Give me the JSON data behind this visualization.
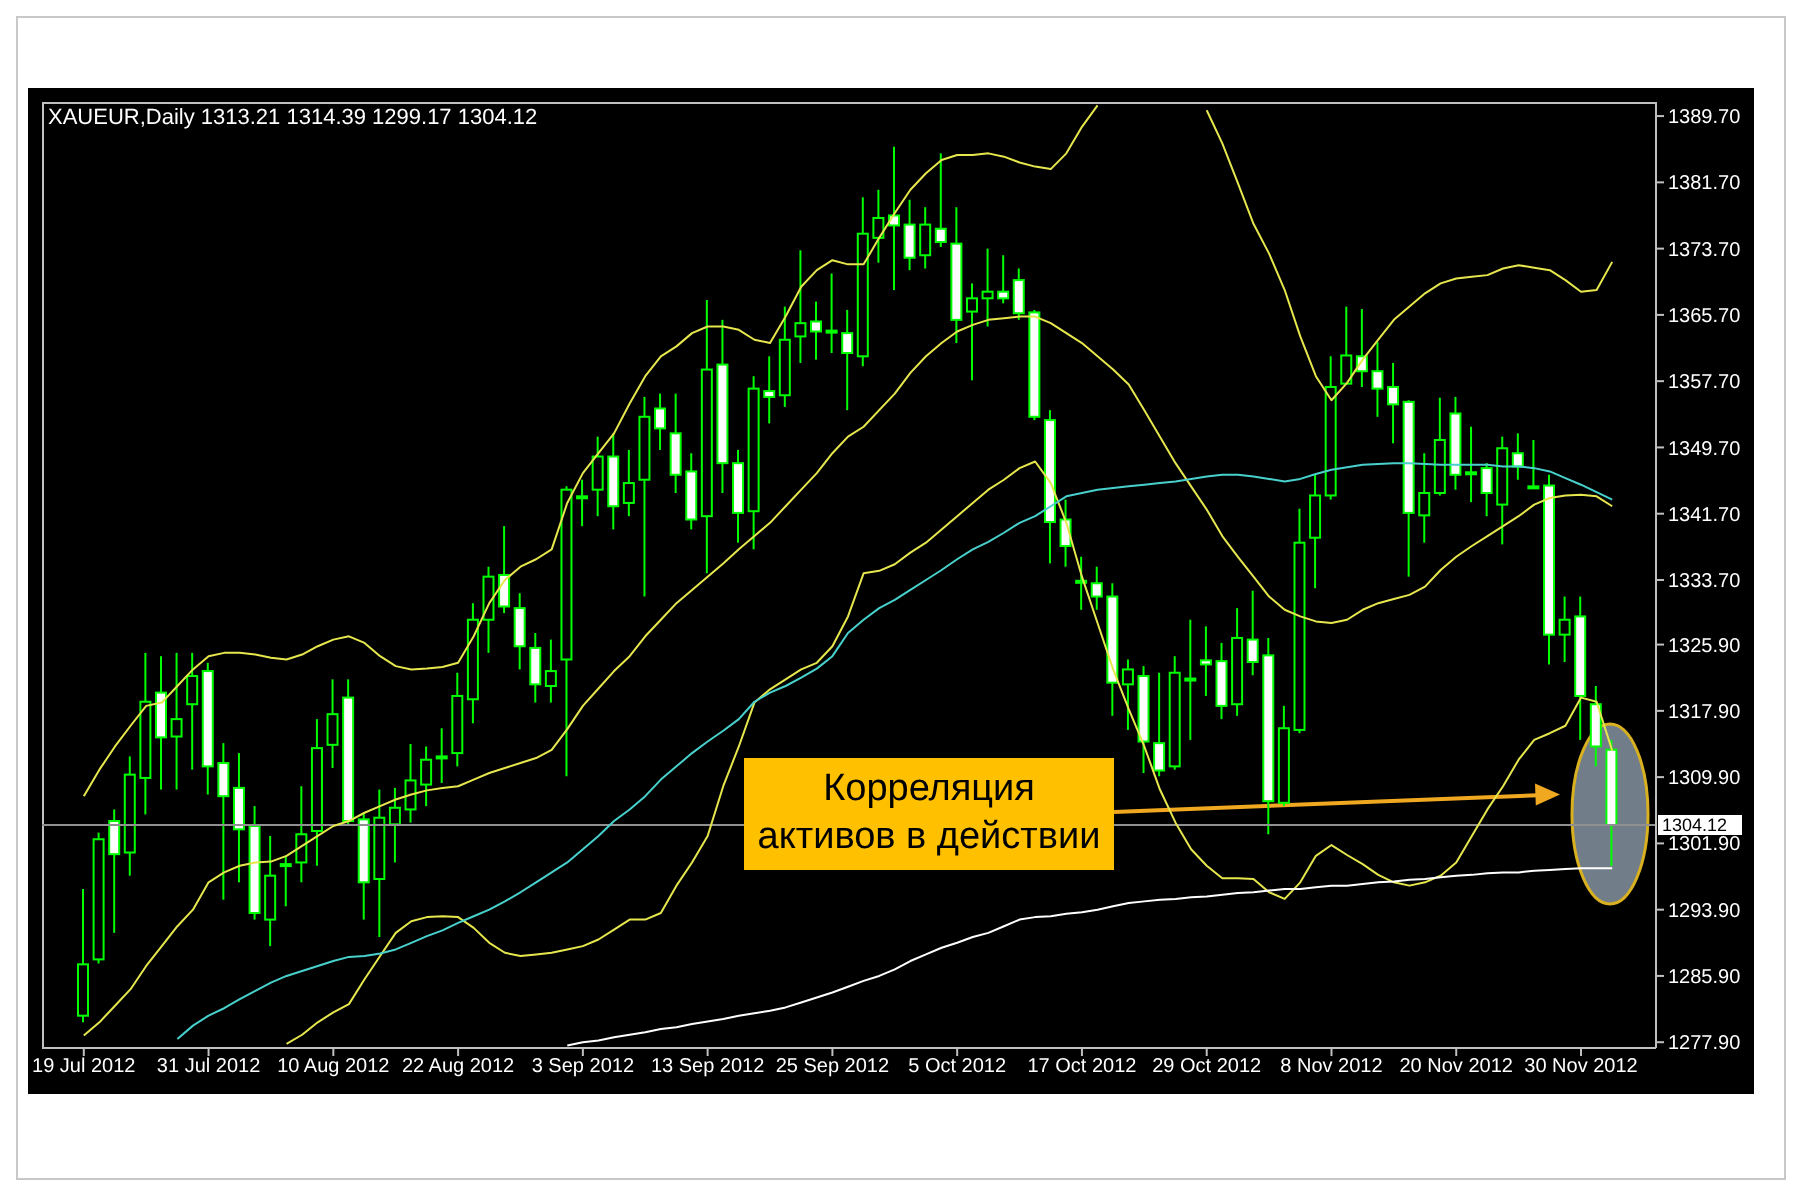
{
  "chart_data": {
    "type": "candlestick",
    "title": "XAUEUR,Daily 1313.21 1314.39 1299.17 1304.12",
    "annotations": [
      "Корреляция\nактивов в действии"
    ],
    "categories": [
      "19 Jul 2012",
      null,
      null,
      null,
      null,
      null,
      null,
      null,
      "31 Jul 2012",
      null,
      null,
      null,
      null,
      null,
      null,
      null,
      "10 Aug 2012",
      null,
      null,
      null,
      null,
      null,
      null,
      null,
      "22 Aug 2012",
      null,
      null,
      null,
      null,
      null,
      null,
      null,
      "3 Sep 2012",
      null,
      null,
      null,
      null,
      null,
      null,
      null,
      "13 Sep 2012",
      null,
      null,
      null,
      null,
      null,
      null,
      null,
      "25 Sep 2012",
      null,
      null,
      null,
      null,
      null,
      null,
      null,
      "5 Oct 2012",
      null,
      null,
      null,
      null,
      null,
      null,
      null,
      "17 Oct 2012",
      null,
      null,
      null,
      null,
      null,
      null,
      null,
      "29 Oct 2012",
      null,
      null,
      null,
      null,
      null,
      null,
      null,
      "8 Nov 2012",
      null,
      null,
      null,
      null,
      null,
      null,
      null,
      "20 Nov 2012",
      null,
      null,
      null,
      null,
      null,
      null,
      null,
      "30 Nov 2012",
      null,
      null
    ],
    "ohlc": [
      [
        1281.1,
        1296.4,
        1280.3,
        1287.3
      ],
      [
        1287.9,
        1303.2,
        1287.4,
        1302.4
      ],
      [
        1304.6,
        1306.0,
        1291.1,
        1300.6
      ],
      [
        1300.8,
        1312.4,
        1298.0,
        1310.2
      ],
      [
        1309.8,
        1324.9,
        1305.4,
        1319.0
      ],
      [
        1320.1,
        1324.5,
        1308.4,
        1314.7
      ],
      [
        1314.8,
        1324.9,
        1308.4,
        1316.9
      ],
      [
        1318.7,
        1324.9,
        1310.8,
        1322.1
      ],
      [
        1322.7,
        1323.7,
        1307.8,
        1311.2
      ],
      [
        1311.6,
        1314.0,
        1295.1,
        1307.6
      ],
      [
        1308.6,
        1312.8,
        1297.2,
        1303.6
      ],
      [
        1304.0,
        1306.4,
        1292.7,
        1293.5
      ],
      [
        1292.7,
        1302.8,
        1289.5,
        1298.0
      ],
      [
        1299.2,
        1300.4,
        1294.3,
        1299.4
      ],
      [
        1299.6,
        1308.8,
        1297.2,
        1303.0
      ],
      [
        1303.4,
        1316.9,
        1299.2,
        1313.4
      ],
      [
        1313.8,
        1321.7,
        1311.0,
        1317.5
      ],
      [
        1319.5,
        1321.7,
        1304.0,
        1304.6
      ],
      [
        1304.8,
        1305.6,
        1292.7,
        1297.2
      ],
      [
        1297.6,
        1308.4,
        1290.6,
        1305.0
      ],
      [
        1304.2,
        1308.6,
        1299.6,
        1306.2
      ],
      [
        1306.0,
        1313.9,
        1304.4,
        1309.5
      ],
      [
        1309.0,
        1313.6,
        1306.4,
        1312.0
      ],
      [
        1312.3,
        1315.8,
        1309.2,
        1312.4
      ],
      [
        1312.8,
        1322.5,
        1311.2,
        1319.7
      ],
      [
        1319.3,
        1330.9,
        1316.4,
        1328.9
      ],
      [
        1328.9,
        1335.3,
        1324.9,
        1334.1
      ],
      [
        1334.3,
        1340.2,
        1329.7,
        1330.5
      ],
      [
        1330.3,
        1332.1,
        1322.9,
        1325.7
      ],
      [
        1325.5,
        1327.3,
        1318.9,
        1321.1
      ],
      [
        1320.9,
        1326.5,
        1318.9,
        1322.7
      ],
      [
        1324.1,
        1345.0,
        1310.0,
        1344.6
      ],
      [
        1343.7,
        1345.8,
        1340.2,
        1343.8
      ],
      [
        1344.6,
        1351.0,
        1341.4,
        1348.6
      ],
      [
        1348.6,
        1351.4,
        1339.8,
        1342.6
      ],
      [
        1343.0,
        1349.4,
        1341.4,
        1345.4
      ],
      [
        1345.8,
        1355.8,
        1331.7,
        1353.4
      ],
      [
        1354.4,
        1356.2,
        1349.4,
        1352.0
      ],
      [
        1351.4,
        1356.2,
        1344.2,
        1346.4
      ],
      [
        1346.8,
        1349.0,
        1339.8,
        1341.0
      ],
      [
        1341.4,
        1367.5,
        1334.5,
        1359.1
      ],
      [
        1359.7,
        1365.1,
        1344.2,
        1347.8
      ],
      [
        1347.8,
        1349.4,
        1338.2,
        1341.8
      ],
      [
        1342.0,
        1358.3,
        1337.4,
        1356.8
      ],
      [
        1356.5,
        1360.7,
        1352.6,
        1355.8
      ],
      [
        1356.0,
        1366.7,
        1354.6,
        1362.7
      ],
      [
        1363.1,
        1373.5,
        1359.9,
        1364.7
      ],
      [
        1364.9,
        1367.3,
        1360.3,
        1363.7
      ],
      [
        1363.7,
        1370.7,
        1361.1,
        1363.8
      ],
      [
        1363.5,
        1366.3,
        1354.2,
        1361.1
      ],
      [
        1360.7,
        1379.9,
        1359.5,
        1375.5
      ],
      [
        1375.0,
        1380.8,
        1372.0,
        1377.4
      ],
      [
        1377.7,
        1386.0,
        1368.7,
        1376.5
      ],
      [
        1376.6,
        1379.6,
        1371.1,
        1372.6
      ],
      [
        1372.9,
        1378.7,
        1371.3,
        1376.6
      ],
      [
        1376.1,
        1385.2,
        1373.9,
        1374.5
      ],
      [
        1374.3,
        1378.7,
        1362.3,
        1365.1
      ],
      [
        1366.1,
        1369.5,
        1357.8,
        1367.7
      ],
      [
        1367.7,
        1373.7,
        1364.3,
        1368.5
      ],
      [
        1368.5,
        1372.9,
        1367.1,
        1367.7
      ],
      [
        1369.9,
        1371.3,
        1365.1,
        1365.9
      ],
      [
        1366.0,
        1366.3,
        1353.0,
        1353.4
      ],
      [
        1353.0,
        1354.2,
        1335.7,
        1340.7
      ],
      [
        1341.0,
        1343.4,
        1335.3,
        1337.8
      ],
      [
        1333.5,
        1336.5,
        1330.1,
        1333.6
      ],
      [
        1333.3,
        1335.3,
        1330.1,
        1331.7
      ],
      [
        1331.7,
        1333.3,
        1317.3,
        1321.3
      ],
      [
        1321.1,
        1324.1,
        1315.6,
        1322.9
      ],
      [
        1322.1,
        1323.3,
        1310.4,
        1314.2
      ],
      [
        1314.0,
        1322.5,
        1310.0,
        1310.7
      ],
      [
        1311.2,
        1324.5,
        1310.8,
        1322.5
      ],
      [
        1321.7,
        1328.9,
        1314.4,
        1321.8
      ],
      [
        1324.0,
        1328.1,
        1319.7,
        1323.5
      ],
      [
        1323.9,
        1326.1,
        1316.9,
        1318.5
      ],
      [
        1318.7,
        1330.3,
        1317.3,
        1326.7
      ],
      [
        1326.5,
        1332.4,
        1322.2,
        1323.8
      ],
      [
        1324.6,
        1326.7,
        1303.0,
        1307.0
      ],
      [
        1306.8,
        1318.5,
        1306.4,
        1315.8
      ],
      [
        1315.6,
        1342.3,
        1315.2,
        1338.2
      ],
      [
        1338.8,
        1346.4,
        1332.7,
        1343.9
      ],
      [
        1343.9,
        1360.7,
        1343.4,
        1357.0
      ],
      [
        1357.4,
        1366.7,
        1357.3,
        1360.8
      ],
      [
        1360.7,
        1366.4,
        1357.0,
        1358.9
      ],
      [
        1358.9,
        1362.4,
        1353.4,
        1356.8
      ],
      [
        1357.0,
        1359.9,
        1350.2,
        1354.9
      ],
      [
        1355.2,
        1355.4,
        1334.1,
        1341.8
      ],
      [
        1341.5,
        1349.0,
        1338.2,
        1344.2
      ],
      [
        1344.2,
        1355.7,
        1343.9,
        1350.6
      ],
      [
        1353.8,
        1355.8,
        1344.6,
        1346.4
      ],
      [
        1346.6,
        1352.2,
        1343.1,
        1346.7
      ],
      [
        1347.2,
        1347.8,
        1341.4,
        1344.2
      ],
      [
        1342.8,
        1351.0,
        1338.0,
        1349.6
      ],
      [
        1349.0,
        1351.4,
        1345.8,
        1347.4
      ],
      [
        1344.9,
        1350.6,
        1344.7,
        1345.0
      ],
      [
        1345.1,
        1346.4,
        1323.5,
        1327.1
      ],
      [
        1327.1,
        1331.7,
        1323.8,
        1328.9
      ],
      [
        1329.3,
        1331.7,
        1314.4,
        1319.7
      ],
      [
        1318.7,
        1320.9,
        1311.2,
        1313.6
      ],
      [
        1313.21,
        1314.39,
        1299.17,
        1304.12
      ]
    ],
    "color": "#00ff00",
    "colors": [
      "#000000",
      "#000000",
      "#ffffff",
      "#000000",
      "#000000",
      "#ffffff",
      "#000000",
      "#000000",
      "#ffffff",
      "#ffffff",
      "#ffffff",
      "#ffffff",
      "#000000",
      "#000000",
      "#000000",
      "#000000",
      "#000000",
      "#ffffff",
      "#ffffff",
      "#000000",
      "#000000",
      "#000000",
      "#000000",
      "#000000",
      "#000000",
      "#000000",
      "#000000",
      "#ffffff",
      "#ffffff",
      "#ffffff",
      "#000000",
      "#000000",
      "#000000",
      "#000000",
      "#ffffff",
      "#000000",
      "#000000",
      "#ffffff",
      "#ffffff",
      "#ffffff",
      "#000000",
      "#ffffff",
      "#ffffff",
      "#000000",
      "#ffffff",
      "#000000",
      "#000000",
      "#ffffff",
      "#000000",
      "#ffffff",
      "#000000",
      "#000000",
      "#ffffff",
      "#ffffff",
      "#000000",
      "#ffffff",
      "#ffffff",
      "#000000",
      "#000000",
      "#ffffff",
      "#ffffff",
      "#ffffff",
      "#ffffff",
      "#ffffff",
      "#000000",
      "#ffffff",
      "#ffffff",
      "#000000",
      "#ffffff",
      "#ffffff",
      "#000000",
      "#000000",
      "#ffffff",
      "#ffffff",
      "#000000",
      "#ffffff",
      "#ffffff",
      "#000000",
      "#000000",
      "#000000",
      "#000000",
      "#000000",
      "#ffffff",
      "#ffffff",
      "#ffffff",
      "#ffffff",
      "#000000",
      "#000000",
      "#ffffff",
      "#000000",
      "#ffffff",
      "#000000",
      "#ffffff",
      "#000000",
      "#ffffff",
      "#000000",
      "#ffffff",
      "#ffffff",
      "#ffffff"
    ],
    "series": [
      {
        "type": "line",
        "color": "#e6e64d",
        "values": [
          1307.6,
          1310.8,
          1313.6,
          1316.1,
          1318.5,
          1318.9,
          1320.9,
          1322.9,
          1324.5,
          1324.9,
          1324.9,
          1324.7,
          1324.3,
          1324.1,
          1324.7,
          1325.7,
          1326.5,
          1326.9,
          1326.1,
          1324.5,
          1323.3,
          1322.9,
          1323.0,
          1323.2,
          1323.7,
          1326.9,
          1330.9,
          1333.7,
          1335.3,
          1336.2,
          1337.4,
          1343.0,
          1346.6,
          1349.0,
          1351.4,
          1355.0,
          1358.3,
          1360.7,
          1361.9,
          1363.5,
          1364.3,
          1364.3,
          1363.9,
          1362.7,
          1362.3,
          1365.5,
          1369.1,
          1371.1,
          1372.3,
          1371.8,
          1371.8,
          1375.0,
          1378.0,
          1380.8,
          1382.8,
          1384.4,
          1385.0,
          1385.0,
          1385.2,
          1384.8,
          1384.1,
          1383.6,
          1383.3,
          1385.2,
          1388.4,
          1391.0,
          null,
          null,
          null,
          null,
          null,
          null,
          1390.4,
          1386.4,
          1381.6,
          1376.7,
          1373.1,
          1368.7,
          1363.1,
          1358.3,
          1355.4,
          1357.5,
          1360.3,
          1362.7,
          1365.1,
          1366.7,
          1368.3,
          1369.5,
          1370.1,
          1370.3,
          1370.5,
          1371.3,
          1371.7,
          1371.4,
          1371.1,
          1369.9,
          1368.5,
          1368.7,
          1372.1
        ]
      },
      {
        "type": "line",
        "color": "#e6e64d",
        "values": [
          1278.7,
          1280.3,
          1282.3,
          1284.3,
          1287.1,
          1289.5,
          1291.9,
          1293.9,
          1297.2,
          1298.4,
          1299.2,
          1299.6,
          1299.7,
          1300.4,
          1301.6,
          1302.8,
          1304.0,
          1304.6,
          1305.6,
          1306.4,
          1307.2,
          1307.8,
          1308.3,
          1308.6,
          1308.8,
          1309.6,
          1310.4,
          1311.0,
          1311.6,
          1312.2,
          1313.2,
          1315.7,
          1318.5,
          1320.6,
          1322.7,
          1324.5,
          1326.9,
          1328.9,
          1330.9,
          1332.5,
          1334.1,
          1335.7,
          1337.4,
          1339.0,
          1340.6,
          1342.6,
          1344.6,
          1346.6,
          1349.0,
          1351.0,
          1352.2,
          1354.2,
          1356.2,
          1358.7,
          1360.7,
          1362.3,
          1363.7,
          1364.5,
          1365.1,
          1365.3,
          1365.5,
          1365.5,
          1364.7,
          1363.5,
          1362.3,
          1360.7,
          1359.1,
          1357.3,
          1354.2,
          1351.0,
          1347.8,
          1345.0,
          1342.2,
          1339.0,
          1336.5,
          1334.1,
          1331.7,
          1330.1,
          1329.3,
          1328.7,
          1328.5,
          1328.9,
          1330.1,
          1330.9,
          1331.4,
          1331.9,
          1332.9,
          1334.9,
          1336.5,
          1337.8,
          1339.0,
          1340.2,
          1341.4,
          1342.8,
          1343.6,
          1343.9,
          1344.0,
          1343.8,
          1342.6
        ]
      },
      {
        "type": "line",
        "color": "#e6e64d",
        "values": [
          null,
          null,
          null,
          null,
          null,
          null,
          null,
          null,
          null,
          null,
          null,
          null,
          null,
          1277.7,
          1278.8,
          1280.3,
          1281.5,
          1282.5,
          1285.5,
          1288.3,
          1291.1,
          1292.5,
          1293.0,
          1293.1,
          1293.0,
          1291.7,
          1289.9,
          1288.7,
          1288.3,
          1288.5,
          1288.7,
          1289.1,
          1289.5,
          1290.3,
          1291.5,
          1292.7,
          1292.7,
          1293.5,
          1296.8,
          1299.6,
          1302.8,
          1308.8,
          1313.6,
          1318.9,
          1320.5,
          1321.7,
          1322.9,
          1323.7,
          1325.7,
          1329.3,
          1334.5,
          1334.8,
          1335.6,
          1337.0,
          1338.2,
          1339.8,
          1341.4,
          1343.0,
          1344.6,
          1345.8,
          1347.2,
          1348.0,
          1345.4,
          1340.6,
          1334.1,
          1328.5,
          1322.9,
          1318.1,
          1313.6,
          1308.4,
          1304.4,
          1301.2,
          1299.2,
          1297.7,
          1297.7,
          1297.6,
          1296.0,
          1295.2,
          1297.2,
          1300.4,
          1301.7,
          1300.5,
          1299.4,
          1298.1,
          1297.2,
          1296.8,
          1297.2,
          1298.0,
          1299.6,
          1302.8,
          1306.0,
          1308.8,
          1312.0,
          1314.4,
          1315.2,
          1316.1,
          1319.5,
          1319.0,
          1313.1
        ]
      },
      {
        "type": "line",
        "color": "#48d1cc",
        "values": [
          null,
          null,
          null,
          null,
          null,
          null,
          1278.3,
          1279.9,
          1281.1,
          1282.0,
          1283.1,
          1284.1,
          1285.1,
          1285.9,
          1286.5,
          1287.1,
          1287.7,
          1288.2,
          1288.3,
          1288.6,
          1289.1,
          1289.9,
          1290.7,
          1291.4,
          1292.3,
          1293.1,
          1293.9,
          1294.9,
          1296.0,
          1297.2,
          1298.4,
          1299.6,
          1301.2,
          1302.8,
          1304.6,
          1306.0,
          1307.6,
          1309.6,
          1311.2,
          1312.8,
          1314.2,
          1315.5,
          1316.9,
          1319.0,
          1320.1,
          1320.9,
          1321.9,
          1323.0,
          1324.5,
          1327.3,
          1328.9,
          1330.3,
          1331.3,
          1332.5,
          1333.7,
          1334.9,
          1336.2,
          1337.4,
          1338.3,
          1339.4,
          1340.6,
          1341.4,
          1342.6,
          1343.8,
          1344.2,
          1344.6,
          1344.8,
          1345.0,
          1345.2,
          1345.4,
          1345.6,
          1345.9,
          1346.2,
          1346.4,
          1346.4,
          1346.2,
          1345.9,
          1345.6,
          1345.9,
          1346.5,
          1347.0,
          1347.3,
          1347.6,
          1347.7,
          1347.8,
          1347.8,
          1347.7,
          1347.6,
          1347.6,
          1347.6,
          1347.6,
          1347.4,
          1347.4,
          1347.2,
          1346.8,
          1346.0,
          1345.2,
          1344.3,
          1343.4
        ]
      },
      {
        "type": "line",
        "color": "#ffffff",
        "values": [
          null,
          null,
          null,
          null,
          null,
          null,
          null,
          null,
          null,
          null,
          null,
          null,
          null,
          null,
          null,
          null,
          null,
          null,
          null,
          null,
          null,
          null,
          null,
          null,
          null,
          null,
          null,
          null,
          null,
          null,
          null,
          1277.5,
          1277.9,
          1278.1,
          1278.5,
          1278.8,
          1279.1,
          1279.5,
          1279.7,
          1280.1,
          1280.4,
          1280.7,
          1281.1,
          1281.4,
          1281.7,
          1282.1,
          1282.7,
          1283.3,
          1283.9,
          1284.6,
          1285.3,
          1285.9,
          1286.7,
          1287.7,
          1288.5,
          1289.3,
          1289.9,
          1290.6,
          1291.1,
          1291.9,
          1292.7,
          1293.0,
          1293.1,
          1293.4,
          1293.6,
          1293.9,
          1294.3,
          1294.7,
          1294.9,
          1295.1,
          1295.2,
          1295.4,
          1295.5,
          1295.7,
          1295.9,
          1296.0,
          1296.2,
          1296.4,
          1296.4,
          1296.6,
          1296.8,
          1296.8,
          1297.0,
          1297.2,
          1297.3,
          1297.5,
          1297.6,
          1297.8,
          1298.0,
          1298.1,
          1298.3,
          1298.4,
          1298.4,
          1298.6,
          1298.7,
          1298.8,
          1298.9,
          1298.9,
          1298.9
        ]
      }
    ],
    "ylim": [
      1277.2,
      1391.4
    ],
    "yticks": [
      {
        "value": 1277.9,
        "label": "1277.90"
      },
      {
        "value": 1285.9,
        "label": "1285.90"
      },
      {
        "value": 1293.9,
        "label": "1293.90"
      },
      {
        "value": 1301.9,
        "label": "1301.90"
      },
      {
        "value": 1309.9,
        "label": "1309.90"
      },
      {
        "value": 1317.9,
        "label": "1317.90"
      },
      {
        "value": 1325.9,
        "label": "1325.90"
      },
      {
        "value": 1333.7,
        "label": "1333.70"
      },
      {
        "value": 1341.7,
        "label": "1341.70"
      },
      {
        "value": 1349.7,
        "label": "1349.70"
      },
      {
        "value": 1357.7,
        "label": "1357.70"
      },
      {
        "value": 1365.7,
        "label": "1365.70"
      },
      {
        "value": 1373.7,
        "label": "1373.70"
      },
      {
        "value": 1381.7,
        "label": "1381.70"
      },
      {
        "value": 1389.7,
        "label": "1389.70"
      }
    ],
    "ref_lines": [
      {
        "axis": "y",
        "value": 1304.12,
        "label": "1304.12",
        "color": "#909090"
      }
    ],
    "marker": "none"
  }
}
